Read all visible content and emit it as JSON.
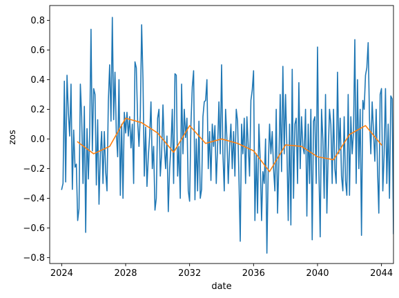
{
  "chart_data": {
    "type": "line",
    "title": "",
    "xlabel": "date",
    "ylabel": "zos",
    "xlim": [
      "2023-04-01",
      "2044-10-01"
    ],
    "ylim": [
      -0.84,
      0.9
    ],
    "grid": false,
    "legend": "none",
    "x_ticks": [
      "2024",
      "2028",
      "2032",
      "2036",
      "2040",
      "2044"
    ],
    "y_ticks": [
      "−0.8",
      "−0.6",
      "−0.4",
      "−0.2",
      "0.0",
      "0.2",
      "0.4",
      "0.6",
      "0.8"
    ],
    "y_tick_values": [
      -0.8,
      -0.6,
      -0.4,
      -0.2,
      0.0,
      0.2,
      0.4,
      0.6,
      0.8
    ],
    "series": [
      {
        "color": "#1f77b4",
        "style": "monthly",
        "start": "2024-01",
        "step_months": 1,
        "values": [
          -0.34,
          -0.3,
          0.39,
          -0.29,
          0.43,
          0.18,
          0.02,
          0.37,
          -0.34,
          0.06,
          -0.19,
          -0.17,
          -0.55,
          -0.47,
          0.37,
          0.15,
          -0.3,
          0.22,
          -0.63,
          0.07,
          -0.27,
          0.03,
          0.74,
          -0.08,
          0.34,
          0.3,
          -0.31,
          0.13,
          -0.44,
          -0.1,
          0.05,
          -0.3,
          0.05,
          -0.22,
          -0.35,
          0.25,
          0.5,
          0.12,
          0.82,
          0.13,
          0.45,
          0.04,
          -0.12,
          0.4,
          -0.38,
          0.1,
          -0.4,
          0.18,
          0.04,
          0.18,
          0.02,
          0.15,
          -0.06,
          0.1,
          -0.3,
          0.52,
          0.48,
          0.12,
          -0.05,
          0.16,
          0.77,
          0.4,
          -0.25,
          0.08,
          -0.32,
          -0.12,
          0.02,
          0.25,
          -0.2,
          -0.05,
          -0.48,
          -0.4,
          0.14,
          0.2,
          -0.25,
          -0.1,
          0.23,
          -0.05,
          -0.2,
          0.02,
          -0.49,
          -0.2,
          -0.05,
          0.2,
          -0.3,
          0.44,
          0.43,
          -0.25,
          -0.05,
          -0.4,
          0.37,
          -0.1,
          0.2,
          0.01,
          0.14,
          -0.35,
          -0.42,
          0.1,
          0.35,
          0.46,
          -0.41,
          0.0,
          -0.35,
          0.12,
          -0.4,
          -0.34,
          0.15,
          0.25,
          0.26,
          0.4,
          -0.2,
          0.05,
          -0.28,
          0.1,
          -0.05,
          0.09,
          -0.3,
          -0.05,
          0.25,
          -0.1,
          0.5,
          -0.1,
          -0.35,
          0.2,
          0.0,
          -0.3,
          -0.05,
          0.1,
          -0.2,
          0.05,
          -0.25,
          0.2,
          0.12,
          -0.25,
          -0.69,
          0.1,
          -0.1,
          0.14,
          -0.3,
          0.15,
          -0.05,
          -0.25,
          0.26,
          0.33,
          0.46,
          -0.55,
          -0.1,
          -0.5,
          0.1,
          -0.15,
          -0.55,
          -0.22,
          -0.3,
          0.0,
          -0.77,
          -0.2,
          0.1,
          -0.1,
          0.05,
          -0.2,
          -0.35,
          0.2,
          -0.5,
          -0.15,
          0.3,
          -0.22,
          0.49,
          -0.1,
          0.3,
          -0.05,
          -0.55,
          0.1,
          -0.58,
          0.47,
          -0.4,
          0.1,
          0.14,
          -0.3,
          0.38,
          -0.2,
          0.15,
          -0.05,
          -0.1,
          0.2,
          -0.52,
          0.1,
          -0.3,
          0.2,
          -0.68,
          0.12,
          0.15,
          -0.3,
          0.62,
          -0.2,
          -0.66,
          0.2,
          0.0,
          -0.4,
          0.3,
          -0.5,
          -0.1,
          0.2,
          0.1,
          -0.3,
          0.2,
          -0.2,
          -0.3,
          0.45,
          -0.1,
          0.14,
          -0.25,
          -0.35,
          0.15,
          -0.28,
          -0.38,
          0.3,
          -0.38,
          0.15,
          -0.1,
          0.05,
          0.67,
          -0.3,
          0.4,
          -0.2,
          0.2,
          -0.65,
          0.26,
          0.2,
          0.43,
          0.48,
          0.65,
          0.13,
          -0.1,
          0.25,
          0.05,
          -0.15,
          0.2,
          -0.2,
          -0.5,
          0.3,
          0.34,
          -0.35,
          -0.1,
          0.34,
          -0.3,
          0.1,
          -0.4,
          0.29,
          0.27,
          -0.64,
          0.12
        ]
      },
      {
        "color": "#ff7f0e",
        "style": "annual-mean",
        "x": [
          "2025-01",
          "2026-01",
          "2027-01",
          "2028-01",
          "2029-01",
          "2030-01",
          "2031-01",
          "2032-01",
          "2033-01",
          "2034-01",
          "2035-01",
          "2036-01",
          "2037-01",
          "2038-01",
          "2039-01",
          "2040-01",
          "2041-01",
          "2042-01",
          "2043-01",
          "2044-01"
        ],
        "values": [
          -0.02,
          -0.1,
          -0.05,
          0.14,
          0.11,
          0.04,
          -0.09,
          0.09,
          -0.03,
          0.0,
          -0.03,
          -0.08,
          -0.22,
          -0.04,
          -0.05,
          -0.12,
          -0.14,
          0.03,
          0.09,
          -0.04
        ]
      }
    ]
  }
}
